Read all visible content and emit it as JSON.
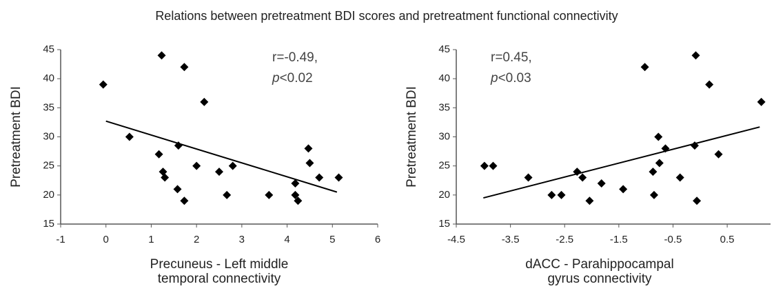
{
  "title": "Relations between pretreatment BDI scores and pretreatment functional connectivity",
  "chart_data": [
    {
      "type": "scatter",
      "ylabel": "Pretreatment BDI",
      "xlabel": [
        "Precuneus - Left middle",
        "temporal connectivity"
      ],
      "annotation": "r=-0.49,",
      "stat_symbol": "p",
      "stat_text": "<0.02",
      "color": "#000000",
      "x": [
        -0.06,
        0.52,
        1.23,
        1.17,
        1.26,
        1.3,
        1.73,
        1.6,
        1.58,
        1.73,
        2.17,
        2.0,
        2.5,
        2.8,
        2.67,
        3.6,
        4.47,
        4.5,
        4.18,
        4.18,
        4.24,
        4.71,
        5.14
      ],
      "values": [
        39,
        30,
        44,
        27,
        24,
        23,
        42,
        28.5,
        21,
        19,
        36,
        25,
        24,
        25,
        20,
        20,
        28,
        25.5,
        22,
        20,
        19,
        23,
        23
      ],
      "trendline": {
        "x": [
          0,
          5.1
        ],
        "y": [
          32.7,
          20.5
        ]
      },
      "xlim": [
        -1,
        6
      ],
      "xticks": [
        -1,
        0,
        1,
        2,
        3,
        4,
        5,
        6
      ],
      "ylim": [
        15,
        45
      ],
      "yticks": [
        15,
        20,
        25,
        30,
        35,
        40,
        45
      ]
    },
    {
      "type": "scatter",
      "ylabel": "Pretreatment BDI",
      "xlabel": [
        "dACC - Parahippocampal",
        "gyrus connectivity"
      ],
      "annotation": "r=0.45,",
      "stat_symbol": "p",
      "stat_text": "<0.03",
      "color": "#000000",
      "x": [
        -3.98,
        -3.82,
        -3.17,
        -2.74,
        -2.56,
        -2.27,
        -2.17,
        -2.04,
        -1.82,
        -1.42,
        -1.02,
        -0.87,
        -0.85,
        -0.77,
        -0.75,
        -0.64,
        -0.37,
        -0.08,
        -0.1,
        -0.06,
        0.17,
        0.34,
        1.13
      ],
      "values": [
        25,
        25,
        23,
        20,
        20,
        24,
        23,
        19,
        22,
        21,
        42,
        24,
        20,
        30,
        25.5,
        28,
        23,
        44,
        28.5,
        19,
        39,
        27,
        36
      ],
      "trendline": {
        "x": [
          -4,
          1.1
        ],
        "y": [
          19.5,
          31.7
        ]
      },
      "xlim": [
        -4.5,
        1.3
      ],
      "xticks": [
        -4.5,
        -3.5,
        -2.5,
        -1.5,
        -0.5,
        0.5
      ],
      "ylim": [
        15,
        45
      ],
      "yticks": [
        15,
        20,
        25,
        30,
        35,
        40,
        45
      ]
    }
  ]
}
